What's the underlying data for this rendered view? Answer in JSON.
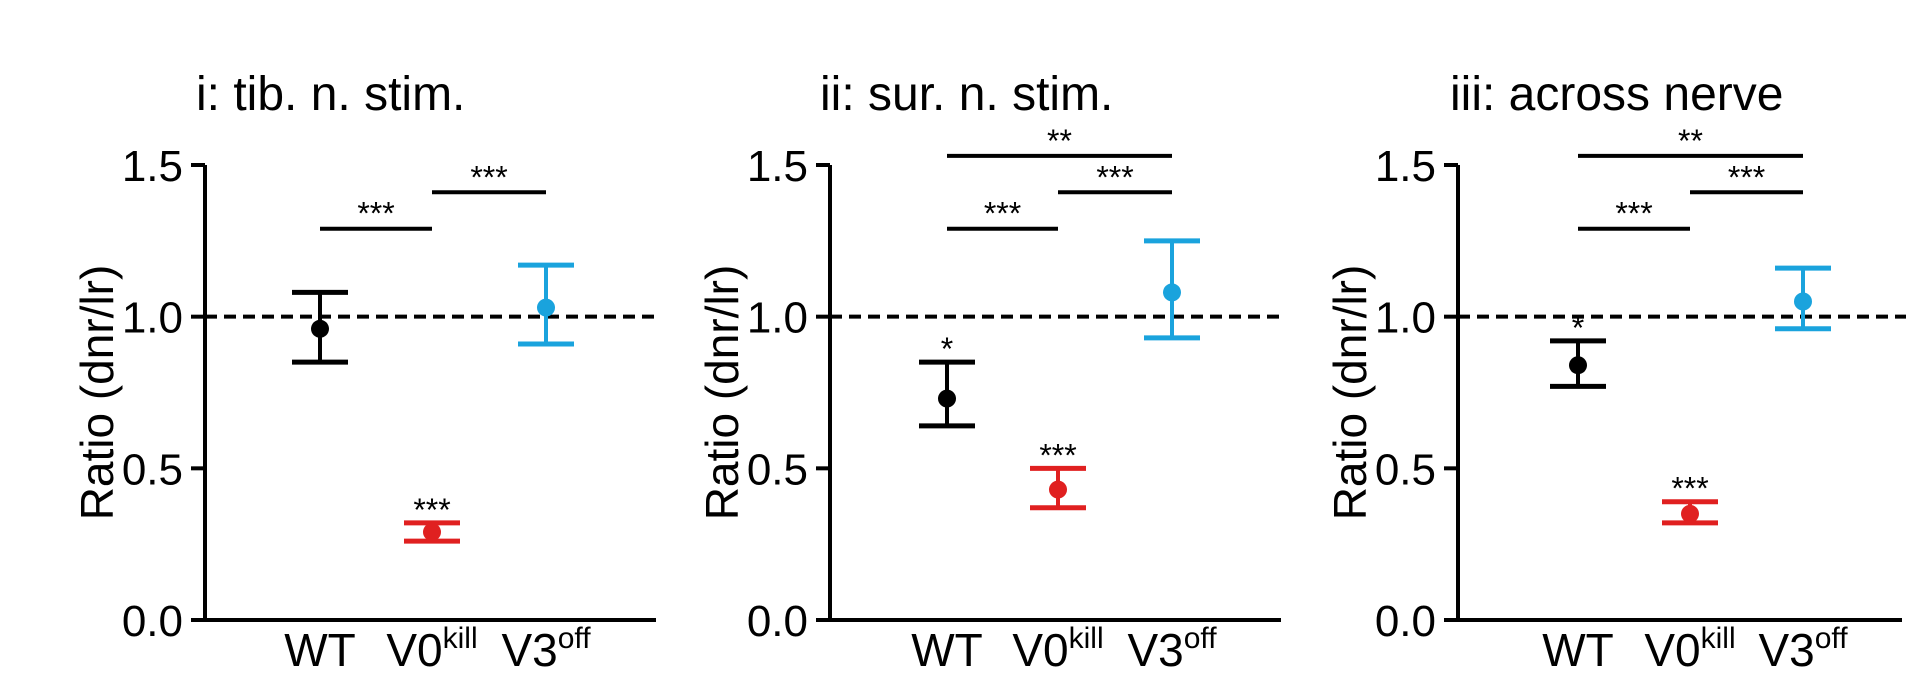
{
  "colors": {
    "axis": "#000000",
    "WT": "#000000",
    "V0kill": "#e02020",
    "V3off": "#1aa3dd"
  },
  "chart_data": [
    {
      "type": "scatter",
      "title": "i: tib. n. stim.",
      "ylabel": "Ratio (dnr/lr)",
      "ylim": [
        0,
        1.5
      ],
      "yticks": [
        "0.0",
        "0.5",
        "1.0",
        "1.5"
      ],
      "reference_line": 1.0,
      "categories": [
        {
          "base": "WT",
          "sup": ""
        },
        {
          "base": "V0",
          "sup": "kill"
        },
        {
          "base": "V3",
          "sup": "off"
        }
      ],
      "points": [
        {
          "mean": 0.96,
          "low": 0.85,
          "high": 1.08,
          "color": "WT",
          "mark": ""
        },
        {
          "mean": 0.29,
          "low": 0.26,
          "high": 0.32,
          "color": "V0kill",
          "mark": "***"
        },
        {
          "mean": 1.03,
          "low": 0.91,
          "high": 1.17,
          "color": "V3off",
          "mark": ""
        }
      ],
      "comparisons": [
        {
          "from": 0,
          "to": 1,
          "label": "***",
          "y": 1.29
        },
        {
          "from": 1,
          "to": 2,
          "label": "***",
          "y": 1.41
        }
      ]
    },
    {
      "type": "scatter",
      "title": "ii: sur. n. stim.",
      "ylabel": "Ratio (dnr/lr)",
      "ylim": [
        0,
        1.5
      ],
      "yticks": [
        "0.0",
        "0.5",
        "1.0",
        "1.5"
      ],
      "reference_line": 1.0,
      "categories": [
        {
          "base": "WT",
          "sup": ""
        },
        {
          "base": "V0",
          "sup": "kill"
        },
        {
          "base": "V3",
          "sup": "off"
        }
      ],
      "points": [
        {
          "mean": 0.73,
          "low": 0.64,
          "high": 0.85,
          "color": "WT",
          "mark": "*"
        },
        {
          "mean": 0.43,
          "low": 0.37,
          "high": 0.5,
          "color": "V0kill",
          "mark": "***"
        },
        {
          "mean": 1.08,
          "low": 0.93,
          "high": 1.25,
          "color": "V3off",
          "mark": ""
        }
      ],
      "comparisons": [
        {
          "from": 0,
          "to": 1,
          "label": "***",
          "y": 1.29
        },
        {
          "from": 1,
          "to": 2,
          "label": "***",
          "y": 1.41
        },
        {
          "from": 0,
          "to": 2,
          "label": "**",
          "y": 1.53
        }
      ]
    },
    {
      "type": "scatter",
      "title": "iii: across nerve",
      "ylabel": "Ratio (dnr/lr)",
      "ylim": [
        0,
        1.5
      ],
      "yticks": [
        "0.0",
        "0.5",
        "1.0",
        "1.5"
      ],
      "reference_line": 1.0,
      "categories": [
        {
          "base": "WT",
          "sup": ""
        },
        {
          "base": "V0",
          "sup": "kill"
        },
        {
          "base": "V3",
          "sup": "off"
        }
      ],
      "points": [
        {
          "mean": 0.84,
          "low": 0.77,
          "high": 0.92,
          "color": "WT",
          "mark": "*"
        },
        {
          "mean": 0.35,
          "low": 0.32,
          "high": 0.39,
          "color": "V0kill",
          "mark": "***"
        },
        {
          "mean": 1.05,
          "low": 0.96,
          "high": 1.16,
          "color": "V3off",
          "mark": ""
        }
      ],
      "comparisons": [
        {
          "from": 0,
          "to": 1,
          "label": "***",
          "y": 1.29
        },
        {
          "from": 1,
          "to": 2,
          "label": "***",
          "y": 1.41
        },
        {
          "from": 0,
          "to": 2,
          "label": "**",
          "y": 1.53
        }
      ]
    }
  ]
}
